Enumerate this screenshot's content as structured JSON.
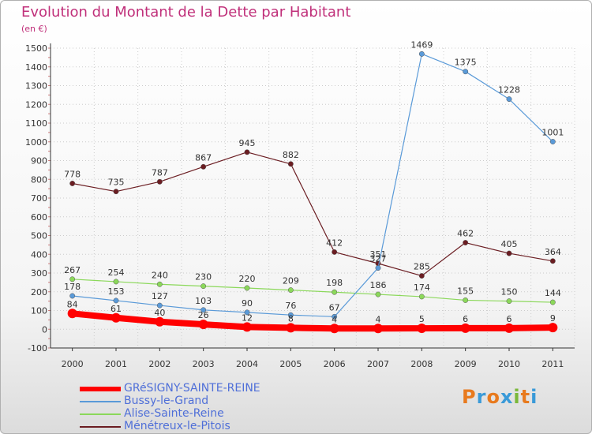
{
  "title": "Evolution du Montant de la Dette par Habitant",
  "unit": "(en €)",
  "logo_text": "Proxiti",
  "colors": {
    "title": "#c0307a",
    "legend_text": "#4f6fd8",
    "grid": "#cccccc",
    "axis": "#333333"
  },
  "chart_data": {
    "type": "line",
    "title": "Evolution du Montant de la Dette par Habitant",
    "ylabel": "(en €)",
    "xlabel": "",
    "x": [
      "2000",
      "2001",
      "2002",
      "2003",
      "2004",
      "2005",
      "2006",
      "2007",
      "2008",
      "2009",
      "2010",
      "2011"
    ],
    "ylim": [
      -100,
      1500
    ],
    "yticks": [
      -100,
      0,
      100,
      200,
      300,
      400,
      500,
      600,
      700,
      800,
      900,
      1000,
      1100,
      1200,
      1300,
      1400,
      1500
    ],
    "grid": true,
    "legend_position": "bottom-left",
    "series": [
      {
        "name": "Ménétreux-le-Pitois",
        "color": "#6b1d22",
        "values": [
          778,
          735,
          787,
          867,
          945,
          882,
          412,
          351,
          285,
          462,
          405,
          364
        ]
      },
      {
        "name": "Alise-Sainte-Reine",
        "color": "#8bd85a",
        "values": [
          267,
          254,
          240,
          230,
          220,
          209,
          198,
          186,
          174,
          155,
          150,
          144
        ]
      },
      {
        "name": "Bussy-le-Grand",
        "color": "#5a9ad8",
        "values": [
          178,
          153,
          127,
          103,
          90,
          76,
          67,
          327,
          1469,
          1375,
          1228,
          1001
        ]
      },
      {
        "name": "GRéSIGNY-SAINTE-REINE",
        "color": "#ff0000",
        "values": [
          84,
          61,
          40,
          26,
          12,
          8,
          4,
          4,
          5,
          6,
          6,
          9
        ]
      }
    ],
    "value_labels": [
      [
        "778",
        "735",
        "787",
        "867",
        "945",
        "882",
        "412",
        "351",
        "285",
        "462",
        "405",
        "364"
      ],
      [
        "267",
        "254",
        "240",
        "230",
        "220",
        "209",
        "198",
        "186",
        "174",
        "155",
        "150",
        "144"
      ],
      [
        "178",
        "153",
        "127",
        "103",
        "90",
        "76",
        "67",
        "327",
        "1469",
        "1375",
        "1228",
        "1001"
      ],
      [
        "84",
        "61",
        "40",
        "26",
        "12",
        "8",
        "4",
        "4",
        "5",
        "6",
        "6",
        "9"
      ]
    ]
  },
  "legend": [
    {
      "label": "GRéSIGNY-SAINTE-REINE",
      "color": "#ff0000"
    },
    {
      "label": "Bussy-le-Grand",
      "color": "#5a9ad8"
    },
    {
      "label": "Alise-Sainte-Reine",
      "color": "#8bd85a"
    },
    {
      "label": "Ménétreux-le-Pitois",
      "color": "#6b1d22"
    }
  ]
}
